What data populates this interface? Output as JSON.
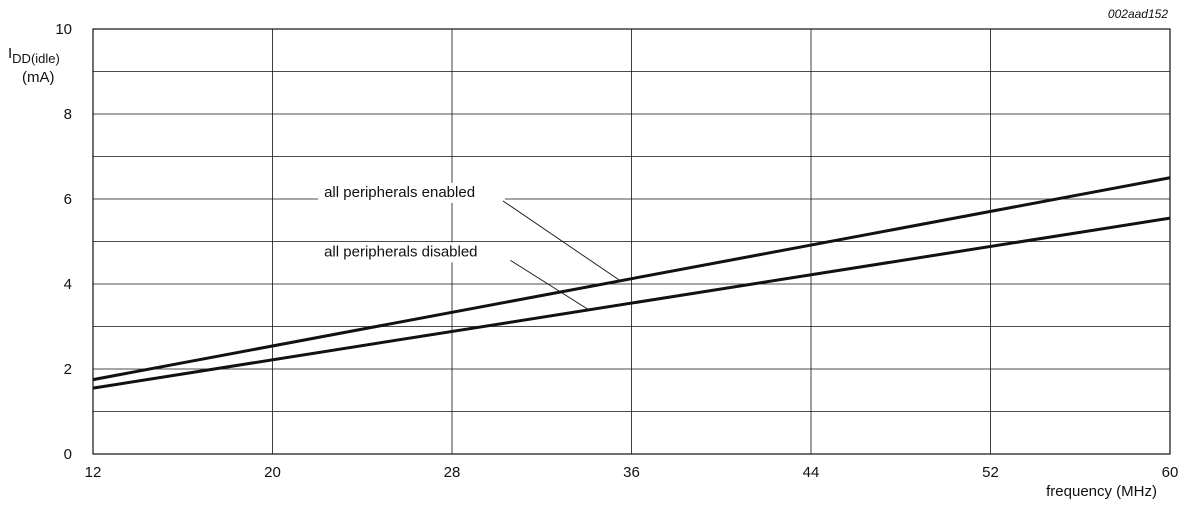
{
  "chart_data": {
    "type": "line",
    "figure_id": "002aad152",
    "ylabel": {
      "main": "I",
      "sub": "DD(idle)",
      "unit": "(mA)"
    },
    "xlabel": "frequency (MHz)",
    "xlim": [
      12,
      60
    ],
    "ylim": [
      0,
      10
    ],
    "x_ticks": [
      12,
      20,
      28,
      36,
      44,
      52,
      60
    ],
    "y_ticks": [
      0,
      2,
      4,
      6,
      8,
      10
    ],
    "x_minor_grid": [],
    "y_minor_grid": [
      1,
      3,
      5,
      7,
      9
    ],
    "grid": true,
    "legend": "none",
    "series": [
      {
        "name": "all peripherals enabled",
        "x": [
          12,
          60
        ],
        "y": [
          1.75,
          6.5
        ]
      },
      {
        "name": "all peripherals disabled",
        "x": [
          12,
          60
        ],
        "y": [
          1.55,
          5.55
        ]
      }
    ],
    "annotations": [
      {
        "text": "all peripherals enabled",
        "series": 0,
        "text_x": 22.3,
        "text_y": 6.05,
        "point_x": 35.5
      },
      {
        "text": "all peripherals disabled",
        "series": 1,
        "text_x": 22.3,
        "text_y": 4.65,
        "point_x": 34.1
      }
    ]
  }
}
